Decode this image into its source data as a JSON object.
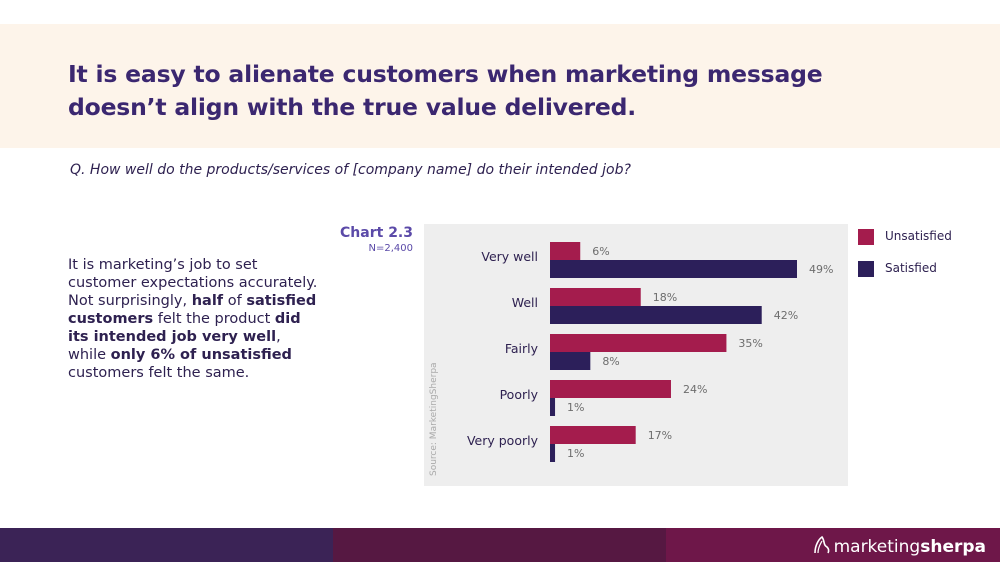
{
  "slide": {
    "headline": "It is easy to alienate customers when marketing message doesn’t align with the true value delivered.",
    "question": "Q. How well do the products/services of [company name] do their intended job?"
  },
  "body": {
    "t1": "It is marketing’s job to set customer expectations accurately. Not surprisingly, ",
    "b1": "half",
    "t2": " of ",
    "b2": "satisfied customers",
    "t3": " felt the product ",
    "b3": "did its intended job very well",
    "t4": ", while ",
    "b4": "only 6% of unsatisfied",
    "t5": " customers felt the same."
  },
  "chart_meta": {
    "label": "Chart 2.3",
    "n": "N=2,400",
    "source": "Source: MarketingSherpa"
  },
  "chart_data": {
    "type": "bar",
    "orientation": "horizontal",
    "categories": [
      "Very well",
      "Well",
      "Fairly",
      "Poorly",
      "Very poorly"
    ],
    "series": [
      {
        "name": "Unsatisfied",
        "values": [
          6,
          18,
          35,
          24,
          17
        ],
        "color": "#a41c4d"
      },
      {
        "name": "Satisfied",
        "values": [
          49,
          42,
          8,
          1,
          1
        ],
        "color": "#2c1f5a"
      }
    ],
    "value_suffix": "%",
    "xlim": [
      0,
      55
    ],
    "legend_position": "right"
  },
  "brand": {
    "name_light": "marketing",
    "name_bold": "sherpa"
  },
  "colors": {
    "title_band": "#fdf4ea",
    "headline": "#3b2770",
    "chart_bg": "#eeeeee",
    "footer": [
      "#3b2356",
      "#561842",
      "#6e1749"
    ]
  }
}
